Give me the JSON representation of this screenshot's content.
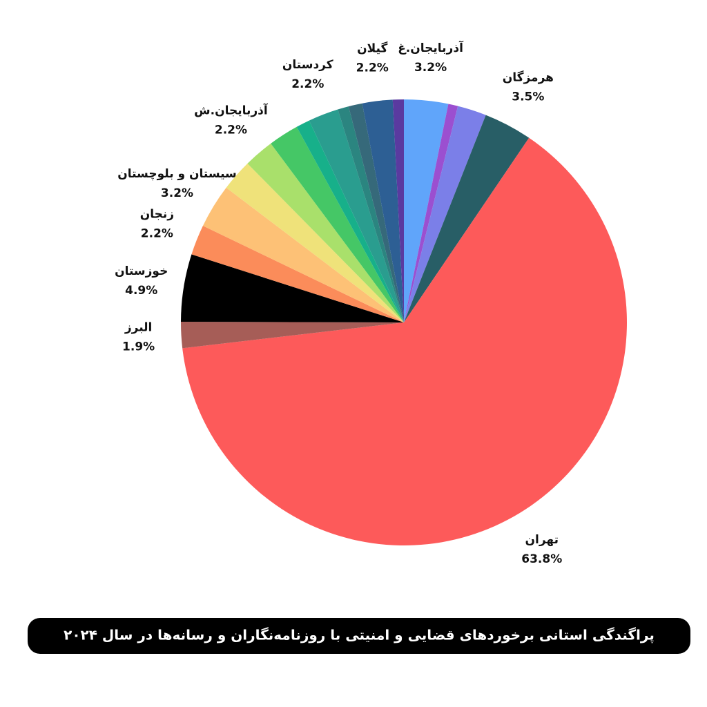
{
  "chart_data": {
    "type": "pie",
    "title": "پراگندگی استانی برخوردهای قضایی و امنیتی با روزنامه‌نگاران و رسانه‌ها در سال ۲۰۲۴",
    "categories": [
      "آذربایجان.غ",
      null,
      null,
      "هرمزگان",
      "تهران",
      "البرز",
      "خوزستان",
      "زنجان",
      "سیستان و بلوچستان",
      null,
      "آذربایجان.ش",
      null,
      null,
      "کردستان",
      null,
      null,
      "گیلان",
      null
    ],
    "values": [
      3.2,
      0.7,
      2.1,
      3.5,
      63.8,
      1.9,
      4.9,
      2.2,
      3.2,
      2.3,
      2.2,
      2.2,
      1.0,
      2.2,
      0.8,
      1.0,
      2.2,
      0.8
    ],
    "value_labels": [
      "3.2%",
      null,
      null,
      "3.5%",
      "63.8%",
      "1.9%",
      "4.9%",
      "2.2%",
      "3.2%",
      null,
      "2.2%",
      null,
      null,
      "2.2%",
      null,
      null,
      "2.2%",
      null
    ],
    "colors": [
      "#60a5fa",
      "#9b4fd0",
      "#7b7fe8",
      "#285e66",
      "#fd5a5a",
      "#a65d57",
      "#000000",
      "#fb8c5a",
      "#fdc176",
      "#efe27a",
      "#a9e06b",
      "#45c766",
      "#17b08a",
      "#2a9d8f",
      "#2b8580",
      "#36697a",
      "#2d5f94",
      "#5a3aa0"
    ]
  }
}
